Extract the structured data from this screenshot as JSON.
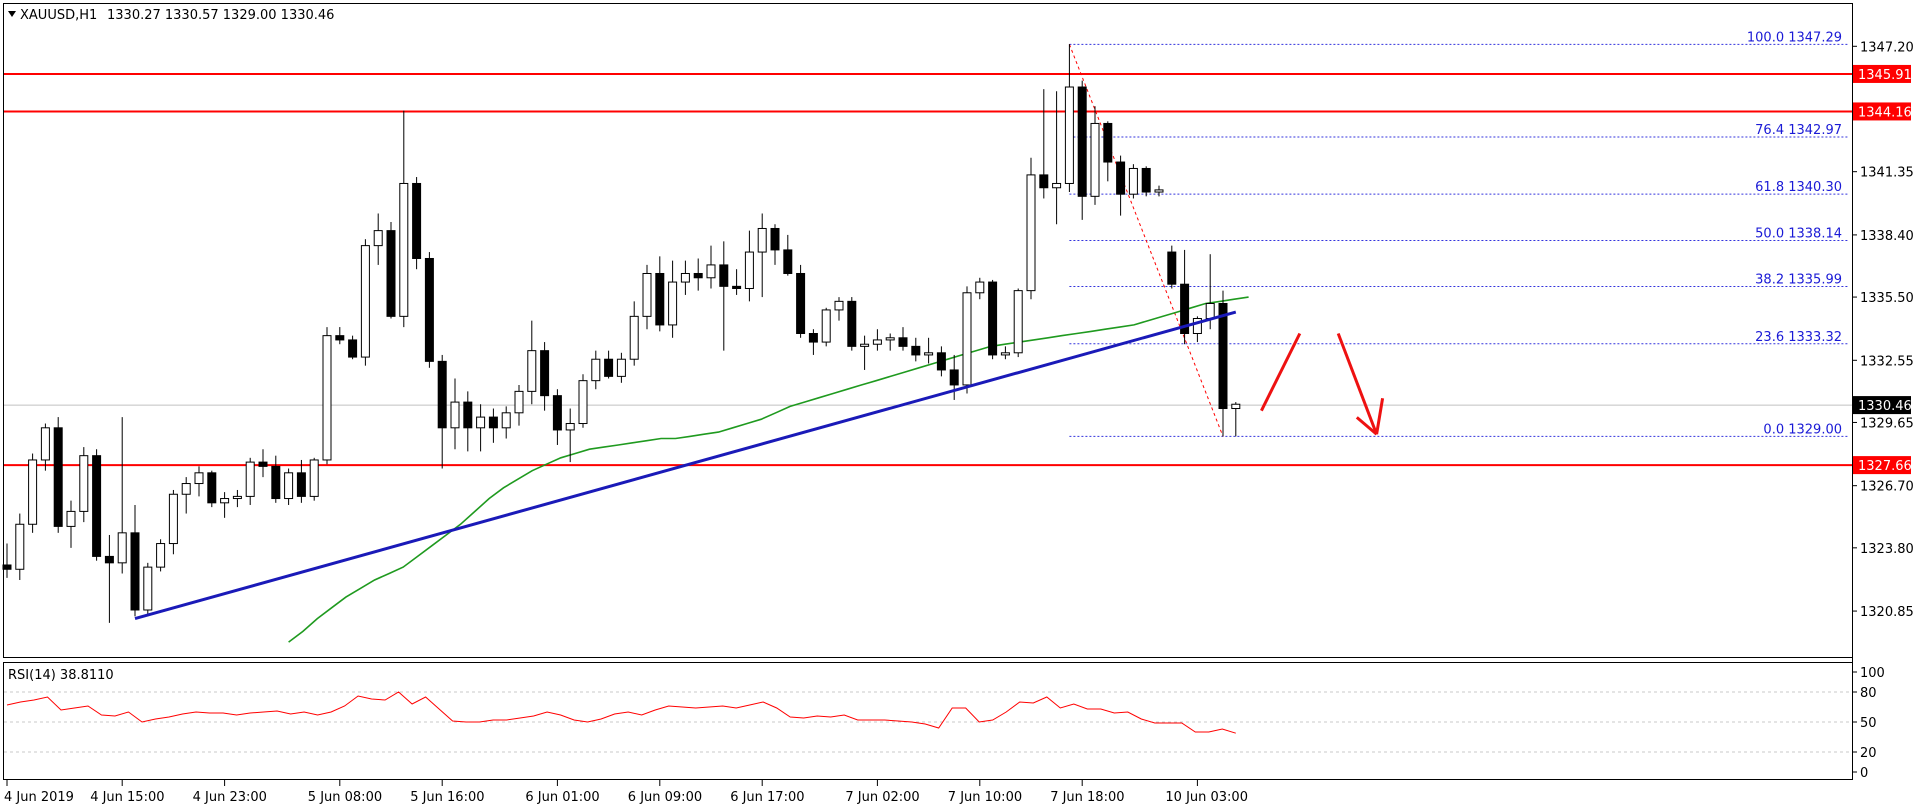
{
  "header": {
    "symbol_label": "XAUUSD,H1",
    "ohlc": "1330.27 1330.57 1329.00 1330.46",
    "menu_icon": "triangle-down-icon"
  },
  "colors": {
    "up_fill": "#ffffff",
    "down_fill": "#000000",
    "candle_stroke": "#000000",
    "ma": "#1f9a1f",
    "trendline": "#1a1ab8",
    "level": "#ff0000",
    "fib": "#3333dd",
    "rsi": "#ff0000",
    "arrow": "#ee1111"
  },
  "chart_data": {
    "type": "candlestick",
    "symbol": "XAUUSD",
    "timeframe": "H1",
    "y_ticks": [
      "1347.20",
      "1341.35",
      "1338.40",
      "1335.50",
      "1332.55",
      "1329.65",
      "1326.70",
      "1323.80",
      "1320.85"
    ],
    "ylim": [
      1319.5,
      1348.8
    ],
    "x_ticks": [
      "4 Jun 2019",
      "4 Jun 15:00",
      "4 Jun 23:00",
      "5 Jun 08:00",
      "5 Jun 16:00",
      "6 Jun 01:00",
      "6 Jun 09:00",
      "6 Jun 17:00",
      "7 Jun 02:00",
      "7 Jun 10:00",
      "7 Jun 18:00",
      "10 Jun 03:00"
    ],
    "x_tick_index": [
      0,
      9,
      17,
      26,
      34,
      43,
      51,
      59,
      68,
      76,
      84,
      93
    ],
    "candles": [
      [
        1323.0,
        1324.0,
        1322.4,
        1322.8
      ],
      [
        1322.8,
        1325.4,
        1322.3,
        1324.9
      ],
      [
        1324.9,
        1328.2,
        1324.5,
        1327.9
      ],
      [
        1327.9,
        1329.6,
        1327.4,
        1329.4
      ],
      [
        1329.4,
        1329.9,
        1324.5,
        1324.8
      ],
      [
        1324.8,
        1326.0,
        1323.8,
        1325.5
      ],
      [
        1325.5,
        1328.5,
        1325.0,
        1328.1
      ],
      [
        1328.1,
        1328.4,
        1323.2,
        1323.4
      ],
      [
        1323.4,
        1324.4,
        1320.3,
        1323.1
      ],
      [
        1323.1,
        1329.9,
        1322.6,
        1324.5
      ],
      [
        1324.5,
        1325.8,
        1320.6,
        1320.9
      ],
      [
        1320.9,
        1323.1,
        1320.7,
        1322.9
      ],
      [
        1322.9,
        1324.2,
        1322.7,
        1324.0
      ],
      [
        1324.0,
        1326.5,
        1323.5,
        1326.3
      ],
      [
        1326.3,
        1327.1,
        1325.4,
        1326.8
      ],
      [
        1326.8,
        1327.6,
        1326.2,
        1327.3
      ],
      [
        1327.3,
        1327.4,
        1325.7,
        1325.9
      ],
      [
        1325.9,
        1326.4,
        1325.2,
        1326.1
      ],
      [
        1326.1,
        1326.5,
        1325.7,
        1326.2
      ],
      [
        1326.2,
        1328.0,
        1325.8,
        1327.8
      ],
      [
        1327.8,
        1328.4,
        1327.1,
        1327.6
      ],
      [
        1327.6,
        1328.1,
        1325.9,
        1326.1
      ],
      [
        1326.1,
        1327.5,
        1325.8,
        1327.3
      ],
      [
        1327.3,
        1327.9,
        1325.9,
        1326.2
      ],
      [
        1326.2,
        1328.0,
        1326.0,
        1327.9
      ],
      [
        1327.9,
        1334.1,
        1327.7,
        1333.7
      ],
      [
        1333.7,
        1334.1,
        1333.3,
        1333.5
      ],
      [
        1333.5,
        1333.7,
        1332.6,
        1332.7
      ],
      [
        1332.7,
        1338.2,
        1332.3,
        1337.9
      ],
      [
        1337.9,
        1339.4,
        1337.0,
        1338.6
      ],
      [
        1338.6,
        1339.0,
        1334.5,
        1334.6
      ],
      [
        1334.6,
        1344.2,
        1334.1,
        1340.8
      ],
      [
        1340.8,
        1341.1,
        1336.8,
        1337.3
      ],
      [
        1337.3,
        1337.6,
        1332.2,
        1332.5
      ],
      [
        1332.5,
        1332.8,
        1327.5,
        1329.4
      ],
      [
        1329.4,
        1331.7,
        1328.4,
        1330.6
      ],
      [
        1330.6,
        1331.1,
        1328.3,
        1329.4
      ],
      [
        1329.4,
        1330.5,
        1328.3,
        1329.9
      ],
      [
        1329.9,
        1330.3,
        1328.7,
        1329.4
      ],
      [
        1329.4,
        1330.4,
        1328.9,
        1330.1
      ],
      [
        1330.1,
        1331.4,
        1329.5,
        1331.1
      ],
      [
        1331.1,
        1334.4,
        1330.5,
        1333.0
      ],
      [
        1333.0,
        1333.4,
        1330.2,
        1330.9
      ],
      [
        1330.9,
        1331.2,
        1328.6,
        1329.3
      ],
      [
        1329.3,
        1330.3,
        1327.8,
        1329.6
      ],
      [
        1329.6,
        1331.9,
        1329.4,
        1331.6
      ],
      [
        1331.6,
        1333.0,
        1331.2,
        1332.6
      ],
      [
        1332.6,
        1333.0,
        1331.7,
        1331.8
      ],
      [
        1331.8,
        1332.9,
        1331.5,
        1332.6
      ],
      [
        1332.6,
        1335.3,
        1332.3,
        1334.6
      ],
      [
        1334.6,
        1337.0,
        1334.0,
        1336.6
      ],
      [
        1336.6,
        1337.4,
        1333.9,
        1334.2
      ],
      [
        1334.2,
        1337.2,
        1333.6,
        1336.2
      ],
      [
        1336.2,
        1337.2,
        1335.6,
        1336.6
      ],
      [
        1336.6,
        1337.3,
        1335.8,
        1336.4
      ],
      [
        1336.4,
        1337.9,
        1335.9,
        1337.0
      ],
      [
        1337.0,
        1338.1,
        1333.0,
        1336.0
      ],
      [
        1336.0,
        1336.8,
        1335.6,
        1335.9
      ],
      [
        1335.9,
        1338.6,
        1335.3,
        1337.6
      ],
      [
        1337.6,
        1339.4,
        1335.5,
        1338.7
      ],
      [
        1338.7,
        1338.9,
        1337.0,
        1337.7
      ],
      [
        1337.7,
        1338.4,
        1336.5,
        1336.6
      ],
      [
        1336.6,
        1337.0,
        1333.6,
        1333.8
      ],
      [
        1333.8,
        1334.0,
        1332.8,
        1333.4
      ],
      [
        1333.4,
        1335.0,
        1333.2,
        1334.9
      ],
      [
        1334.9,
        1335.5,
        1334.4,
        1335.3
      ],
      [
        1335.3,
        1335.5,
        1333.0,
        1333.2
      ],
      [
        1333.2,
        1333.7,
        1332.1,
        1333.3
      ],
      [
        1333.3,
        1334.0,
        1333.0,
        1333.5
      ],
      [
        1333.5,
        1333.8,
        1333.0,
        1333.6
      ],
      [
        1333.6,
        1334.1,
        1333.0,
        1333.2
      ],
      [
        1333.2,
        1333.6,
        1332.5,
        1332.8
      ],
      [
        1332.8,
        1333.6,
        1332.4,
        1332.9
      ],
      [
        1332.9,
        1333.2,
        1331.8,
        1332.1
      ],
      [
        1332.1,
        1332.8,
        1330.7,
        1331.4
      ],
      [
        1331.4,
        1336.0,
        1331.0,
        1335.7
      ],
      [
        1335.7,
        1336.4,
        1335.4,
        1336.2
      ],
      [
        1336.2,
        1336.3,
        1332.6,
        1332.8
      ],
      [
        1332.8,
        1333.2,
        1332.6,
        1332.9
      ],
      [
        1332.9,
        1335.9,
        1332.7,
        1335.8
      ],
      [
        1335.8,
        1342.0,
        1335.4,
        1341.2
      ],
      [
        1341.2,
        1345.2,
        1340.1,
        1340.6
      ],
      [
        1340.6,
        1345.1,
        1338.9,
        1340.8
      ],
      [
        1340.8,
        1347.3,
        1340.4,
        1345.3
      ],
      [
        1345.3,
        1345.6,
        1339.1,
        1340.2
      ],
      [
        1340.2,
        1344.4,
        1339.8,
        1343.6
      ],
      [
        1343.6,
        1343.7,
        1340.9,
        1341.8
      ],
      [
        1341.8,
        1342.1,
        1339.3,
        1340.3
      ],
      [
        1340.3,
        1341.7,
        1340.1,
        1341.5
      ],
      [
        1341.5,
        1341.6,
        1340.2,
        1340.4
      ],
      [
        1340.4,
        1340.7,
        1340.2,
        1340.5
      ],
      [
        1337.6,
        1337.9,
        1335.9,
        1336.1
      ],
      [
        1336.1,
        1337.7,
        1333.3,
        1333.8
      ],
      [
        1333.8,
        1334.6,
        1333.4,
        1334.5
      ],
      [
        1334.5,
        1337.5,
        1334.0,
        1335.2
      ],
      [
        1335.2,
        1335.8,
        1329.0,
        1330.3
      ],
      [
        1330.3,
        1330.6,
        1329.0,
        1330.5
      ]
    ],
    "ma_values": [
      1319.4,
      1319.9,
      1320.5,
      1321.0,
      1321.5,
      1321.9,
      1322.3,
      1322.6,
      1322.9,
      1323.4,
      1323.9,
      1324.4,
      1324.9,
      1325.5,
      1326.1,
      1326.6,
      1327.0,
      1327.4,
      1327.7,
      1328.0,
      1328.2,
      1328.4,
      1328.5,
      1328.6,
      1328.7,
      1328.8,
      1328.9,
      1328.9,
      1329.0,
      1329.1,
      1329.2,
      1329.4,
      1329.6,
      1329.8,
      1330.1,
      1330.4,
      1330.6,
      1330.8,
      1331.0,
      1331.2,
      1331.4,
      1331.6,
      1331.8,
      1332.0,
      1332.2,
      1332.4,
      1332.6,
      1332.8,
      1333.0,
      1333.2,
      1333.3,
      1333.4,
      1333.5,
      1333.6,
      1333.7,
      1333.8,
      1333.9,
      1334.0,
      1334.1,
      1334.2,
      1334.4,
      1334.6,
      1334.8,
      1335.0,
      1335.2,
      1335.3,
      1335.4,
      1335.5
    ],
    "ma_start_index": 29,
    "trendline": {
      "from": [
        10,
        1320.5
      ],
      "to": [
        96,
        1334.8
      ]
    },
    "horizontal_levels": [
      {
        "value": 1345.91,
        "label": "1345.91"
      },
      {
        "value": 1344.16,
        "label": "1344.16"
      },
      {
        "value": 1327.66,
        "label": "1327.66"
      }
    ],
    "current_price": {
      "value": 1330.46,
      "label": "1330.46"
    },
    "fibonacci": {
      "start_index": 83,
      "end_index": 95,
      "levels": [
        {
          "ratio": "100.0",
          "value": 1347.29,
          "label": "100.0 1347.29"
        },
        {
          "ratio": "76.4",
          "value": 1342.97,
          "label": "76.4 1342.97"
        },
        {
          "ratio": "61.8",
          "value": 1340.3,
          "label": "61.8 1340.30"
        },
        {
          "ratio": "50.0",
          "value": 1338.14,
          "label": "50.0 1338.14"
        },
        {
          "ratio": "38.2",
          "value": 1335.99,
          "label": "38.2 1335.99"
        },
        {
          "ratio": "23.6",
          "value": 1333.32,
          "label": "23.6 1333.32"
        },
        {
          "ratio": "0.0",
          "value": 1329.0,
          "label": "0.0 1329.00"
        }
      ]
    },
    "arrows": [
      {
        "kind": "up",
        "from": [
          98,
          1330.2
        ],
        "to": [
          101,
          1333.8
        ]
      },
      {
        "kind": "down",
        "from": [
          104,
          1333.8
        ],
        "to": [
          107,
          1329.1
        ]
      }
    ],
    "rsi": {
      "label": "RSI(14) 38.8110",
      "period": 14,
      "current": 38.811,
      "ylim": [
        0,
        100
      ],
      "y_ticks": [
        "100",
        "80",
        "50",
        "20",
        "0"
      ],
      "y_tick_values": [
        100,
        80,
        50,
        20,
        0
      ],
      "values": [
        67,
        70,
        72,
        75,
        62,
        64,
        66,
        57,
        56,
        60,
        50,
        53,
        55,
        58,
        60,
        59,
        59,
        57,
        59,
        60,
        61,
        58,
        60,
        57,
        60,
        66,
        76,
        73,
        72,
        80,
        68,
        75,
        63,
        51,
        50,
        50,
        52,
        52,
        54,
        56,
        60,
        57,
        52,
        50,
        53,
        58,
        60,
        57,
        62,
        66,
        65,
        64,
        65,
        66,
        64,
        67,
        70,
        64,
        55,
        54,
        56,
        55,
        57,
        52,
        52,
        52,
        51,
        50,
        48,
        44,
        64,
        64,
        50,
        52,
        60,
        70,
        69,
        75,
        64,
        68,
        63,
        63,
        59,
        60,
        53,
        49,
        49,
        49,
        40,
        40,
        43,
        38.8
      ]
    }
  }
}
